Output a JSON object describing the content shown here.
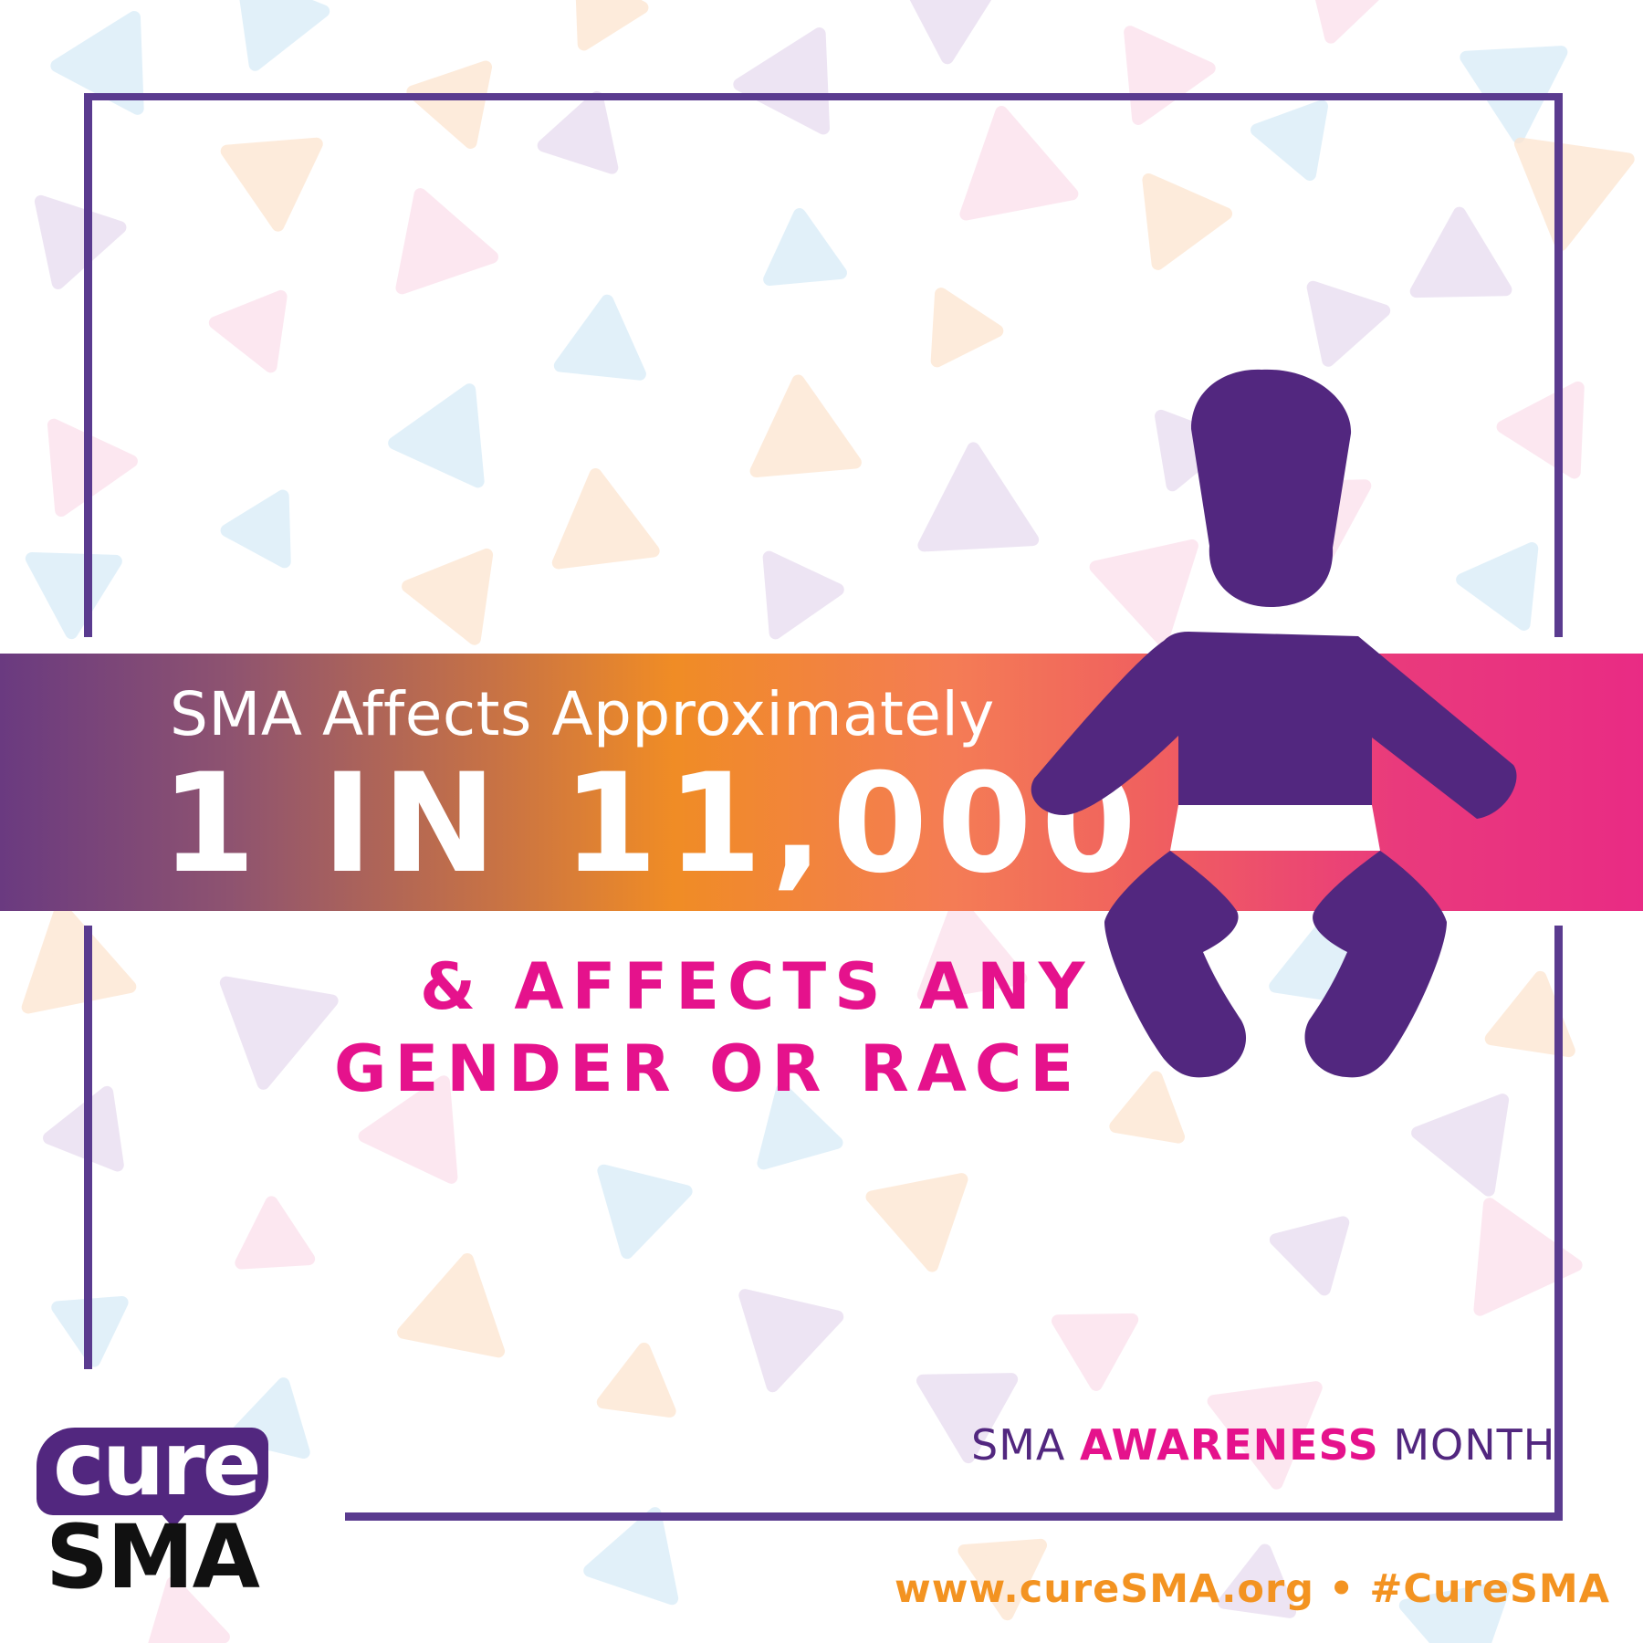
{
  "headline": {
    "intro": "SMA Affects Approximately",
    "stat": "1 IN 11,000"
  },
  "subhead": {
    "line1": "& AFFECTS ANY",
    "line2": "GENDER OR RACE"
  },
  "campaign": {
    "part1": "SMA ",
    "part2": "AWARENESS",
    "part3": " MONTH"
  },
  "footer": {
    "url": "www.cureSMA.org",
    "separator": "•",
    "hashtag": "#CureSMA"
  },
  "logo": {
    "top": "cure",
    "bottom": "SMA"
  },
  "colors": {
    "purple": "#52277f",
    "pink": "#e5128c",
    "orange": "#f39321",
    "frame": "#5a3b8f"
  },
  "icons": [
    "baby-icon",
    "curesma-logo"
  ]
}
